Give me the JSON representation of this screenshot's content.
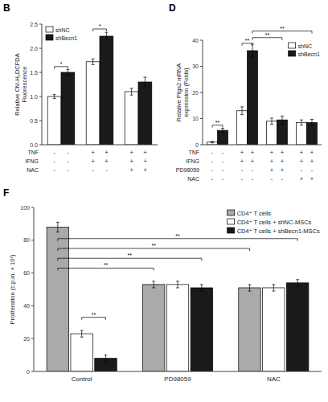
{
  "chart_data": [
    {
      "type": "bar",
      "title": "B",
      "y_label": "Relative CM-H₂DCFDA\nFluorescence",
      "categories": [
        null,
        null,
        null
      ],
      "series": [
        {
          "name": "shNC",
          "color": "#ffffff",
          "values": [
            1.0,
            1.72,
            1.1
          ],
          "errors": [
            0.04,
            0.06,
            0.07
          ]
        },
        {
          "name": "shBecn1",
          "color": "#1a1a1a",
          "values": [
            1.5,
            2.25,
            1.3
          ],
          "errors": [
            0.06,
            0.08,
            0.1
          ]
        }
      ],
      "ylim": [
        0,
        2.5
      ],
      "yticks": [
        {
          "value": 0,
          "label": "0.0"
        },
        0.5,
        {
          "value": 1,
          "label": "1.0"
        },
        1.5,
        {
          "value": 2,
          "label": "2.0"
        },
        2.5
      ],
      "tick_labels": "y",
      "legend": "upper left",
      "condition_rows": [
        {
          "label": "TNF",
          "values": [
            "-",
            "-",
            "+",
            "+",
            "+",
            "+"
          ]
        },
        {
          "label": "IFNG",
          "values": [
            "-",
            "-",
            "+",
            "+",
            "+",
            "+"
          ]
        },
        {
          "label": "NAC",
          "values": [
            "-",
            "-",
            "-",
            "-",
            "+",
            "+"
          ]
        }
      ],
      "annotations": [
        {
          "label": "*",
          "y": 1.62,
          "from": {
            "series": 0,
            "index": 0
          },
          "to": {
            "series": 1,
            "index": 0
          }
        },
        {
          "label": "*",
          "y": 2.4,
          "from": {
            "series": 0,
            "index": 1
          },
          "to": {
            "series": 1,
            "index": 1
          }
        }
      ]
    },
    {
      "type": "bar",
      "title": "D",
      "y_label": "Relative Ptgs2 mRNA\nexpression (Folds)",
      "categories": [
        null,
        null,
        null,
        null
      ],
      "series": [
        {
          "name": "shNC",
          "color": "#ffffff",
          "values": [
            1.0,
            13.0,
            9.0,
            8.5
          ],
          "errors": [
            0.3,
            1.5,
            1.2,
            1.0
          ]
        },
        {
          "name": "shBecn1",
          "color": "#1a1a1a",
          "values": [
            5.5,
            36.0,
            9.5,
            8.5
          ],
          "errors": [
            0.8,
            2.5,
            1.5,
            1.2
          ]
        }
      ],
      "ylim": [
        0,
        40
      ],
      "yticks": [
        0,
        10,
        20,
        30,
        40
      ],
      "tick_labels": "y",
      "legend": "upper right",
      "condition_rows": [
        {
          "label": "TNF",
          "values": [
            "-",
            "-",
            "+",
            "+",
            "+",
            "+",
            "+",
            "+"
          ]
        },
        {
          "label": "IFNG",
          "values": [
            "-",
            "-",
            "+",
            "+",
            "+",
            "+",
            "+",
            "+"
          ]
        },
        {
          "label": "PD98059",
          "values": [
            "-",
            "-",
            "-",
            "-",
            "+",
            "+",
            "-",
            "-"
          ]
        },
        {
          "label": "NAC",
          "values": [
            "-",
            "-",
            "-",
            "-",
            "-",
            "-",
            "+",
            "+"
          ]
        }
      ],
      "annotations": [
        {
          "label": "**",
          "y": 7.5,
          "from": {
            "series": 0,
            "index": 0
          },
          "to": {
            "series": 1,
            "index": 0
          }
        },
        {
          "label": "**",
          "y": 38.8,
          "from": {
            "series": 0,
            "index": 1
          },
          "to": {
            "series": 1,
            "index": 1
          }
        },
        {
          "label": "**",
          "y": 41.0,
          "from": {
            "series": 1,
            "index": 1
          },
          "to": {
            "series": 1,
            "index": 2
          }
        },
        {
          "label": "**",
          "y": 43.5,
          "from": {
            "series": 1,
            "index": 1
          },
          "to": {
            "series": 1,
            "index": 3
          }
        }
      ]
    },
    {
      "type": "bar",
      "title": "F",
      "y_label": "Proliferation (c.p.m. × 10²)",
      "categories": [
        "Control",
        "PD98059",
        "NAC"
      ],
      "series": [
        {
          "name": "CD4⁺ T cells",
          "color": "#aaaaaa",
          "values": [
            88,
            53,
            51
          ],
          "errors": [
            3,
            2,
            2
          ]
        },
        {
          "name": "CD4⁺ T cells + shNC-MSCs",
          "color": "#ffffff",
          "values": [
            23,
            53,
            51
          ],
          "errors": [
            2,
            2,
            2
          ]
        },
        {
          "name": "CD4⁺ T cells + shBecn1-MSCs",
          "color": "#1a1a1a",
          "values": [
            8,
            51,
            54
          ],
          "errors": [
            2,
            2,
            2
          ]
        }
      ],
      "ylim": [
        0,
        100
      ],
      "yticks": [
        0,
        20,
        40,
        60,
        80,
        100
      ],
      "legend": "upper right",
      "annotations": [
        {
          "label": "**",
          "y": 33,
          "from": {
            "series": 1,
            "index": 0
          },
          "to": {
            "series": 2,
            "index": 0
          }
        },
        {
          "label": "**",
          "y": 63,
          "from": {
            "series": 0,
            "index": 0
          },
          "to": {
            "series": 0,
            "index": 1
          }
        },
        {
          "label": "**",
          "y": 69,
          "from": {
            "series": 0,
            "index": 0
          },
          "to": {
            "series": 2,
            "index": 1
          }
        },
        {
          "label": "**",
          "y": 75,
          "from": {
            "series": 0,
            "index": 0
          },
          "to": {
            "series": 0,
            "index": 2
          }
        },
        {
          "label": "**",
          "y": 81,
          "from": {
            "series": 0,
            "index": 0
          },
          "to": {
            "series": 2,
            "index": 2
          }
        }
      ]
    }
  ]
}
